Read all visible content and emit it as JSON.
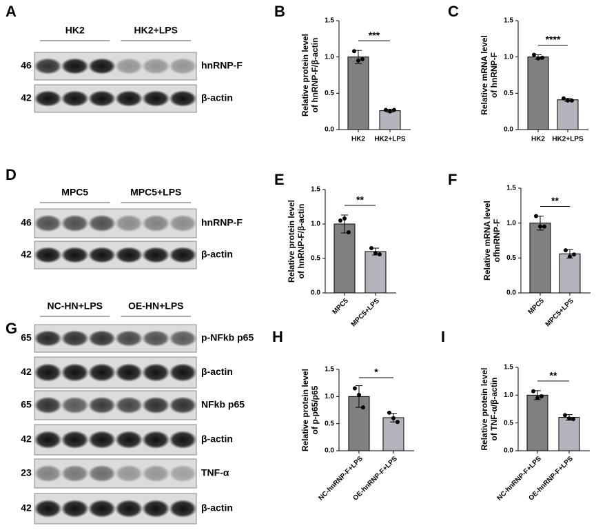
{
  "blots": [
    {
      "letter": "A",
      "groups": [
        "HK2",
        "HK2+LPS"
      ],
      "rows": [
        {
          "mw": "46",
          "label": "hnRNP-F"
        },
        {
          "mw": "42",
          "label": "β-actin"
        }
      ]
    },
    {
      "letter": "D",
      "groups": [
        "MPC5",
        "MPC5+LPS"
      ],
      "rows": [
        {
          "mw": "46",
          "label": "hnRNP-F"
        },
        {
          "mw": "42",
          "label": "β-actin"
        }
      ]
    },
    {
      "letter": "G",
      "groups": [
        "NC-HN+LPS",
        "OE-HN+LPS"
      ],
      "rows": [
        {
          "mw": "65",
          "label": "p-NFkb p65"
        },
        {
          "mw": "42",
          "label": "β-actin"
        },
        {
          "mw": "65",
          "label": "NFkb p65"
        },
        {
          "mw": "42",
          "label": "β-actin"
        },
        {
          "mw": "23",
          "label": "TNF-α"
        },
        {
          "mw": "42",
          "label": "β-actin"
        }
      ]
    }
  ],
  "chart_data": [
    {
      "type": "bar",
      "letter": "B",
      "ylabel": [
        "Relative protein level",
        "of hnRNP-F/β-actin"
      ],
      "categories": [
        "HK2",
        "HK2+LPS"
      ],
      "values": [
        1.0,
        0.26
      ],
      "errors": [
        0.09,
        0.02
      ],
      "points": [
        [
          1.08,
          0.95,
          0.97
        ],
        [
          0.27,
          0.25,
          0.27
        ]
      ],
      "significance": "***",
      "colors": [
        "#808080",
        "#b4b4bc"
      ],
      "ylim": [
        0,
        1.5
      ],
      "yticks": [
        {
          "value": 0,
          "label": "0.0"
        },
        0.5,
        {
          "value": 1,
          "label": "1.0"
        },
        1.5
      ]
    },
    {
      "type": "bar",
      "letter": "C",
      "ylabel": [
        "Relative mRNA level",
        "of hnRNP-F"
      ],
      "categories": [
        "HK2",
        "HK2+LPS"
      ],
      "values": [
        1.0,
        0.41
      ],
      "errors": [
        0.03,
        0.02
      ],
      "points": [
        [
          1.03,
          0.98,
          0.99
        ],
        [
          0.43,
          0.4,
          0.4
        ]
      ],
      "significance": "****",
      "colors": [
        "#808080",
        "#b4b4bc"
      ],
      "ylim": [
        0,
        1.5
      ],
      "yticks": [
        {
          "value": 0,
          "label": "0.0"
        },
        0.5,
        {
          "value": 1,
          "label": "1.0"
        },
        1.5
      ]
    },
    {
      "type": "bar",
      "letter": "E",
      "ylabel": [
        "Relative protein level",
        "of hnRNP-F/β-actin"
      ],
      "categories": [
        "MPC5",
        "MPC5+LPS"
      ],
      "values": [
        1.0,
        0.6
      ],
      "errors": [
        0.13,
        0.05
      ],
      "points": [
        [
          1.05,
          1.08,
          0.88
        ],
        [
          0.65,
          0.58,
          0.56
        ]
      ],
      "significance": "**",
      "colors": [
        "#808080",
        "#b4b4bc"
      ],
      "ylim": [
        0,
        1.5
      ],
      "yticks": [
        {
          "value": 0,
          "label": "0.0"
        },
        0.5,
        {
          "value": 1,
          "label": "1.0"
        },
        1.5
      ]
    },
    {
      "type": "bar",
      "letter": "F",
      "ylabel": [
        "Relative mRNA level",
        "ofhnRNP-F"
      ],
      "categories": [
        "MPC5",
        "MPC5+LPS"
      ],
      "values": [
        1.0,
        0.56
      ],
      "errors": [
        0.1,
        0.06
      ],
      "points": [
        [
          1.1,
          0.95,
          0.95
        ],
        [
          0.61,
          0.52,
          0.55
        ]
      ],
      "significance": "**",
      "colors": [
        "#808080",
        "#b4b4bc"
      ],
      "ylim": [
        0,
        1.5
      ],
      "yticks": [
        {
          "value": 0,
          "label": "0.0"
        },
        0.5,
        {
          "value": 1,
          "label": "1.0"
        },
        1.5
      ]
    },
    {
      "type": "bar",
      "letter": "H",
      "ylabel": [
        "Relative protein level",
        "of p-p65/p65"
      ],
      "categories": [
        "NC-hnRNP-F+LPS",
        "OE-hnRNP-F+LPS"
      ],
      "values": [
        1.0,
        0.61
      ],
      "errors": [
        0.2,
        0.08
      ],
      "points": [
        [
          1.15,
          1.03,
          0.8
        ],
        [
          0.7,
          0.6,
          0.53
        ]
      ],
      "significance": "*",
      "colors": [
        "#808080",
        "#b4b4bc"
      ],
      "ylim": [
        0,
        1.5
      ],
      "yticks": [
        {
          "value": 0,
          "label": "0.0"
        },
        0.5,
        {
          "value": 1,
          "label": "1.0"
        },
        1.5
      ]
    },
    {
      "type": "bar",
      "letter": "I",
      "ylabel": [
        "Relative protein level",
        "of TNF-α/β-actin"
      ],
      "categories": [
        "NC-hnRNP-F+LPS",
        "OE-hnRNP-F+LPS"
      ],
      "values": [
        1.0,
        0.6
      ],
      "errors": [
        0.08,
        0.05
      ],
      "points": [
        [
          1.07,
          0.95,
          0.98
        ],
        [
          0.64,
          0.58,
          0.57
        ]
      ],
      "significance": "**",
      "colors": [
        "#808080",
        "#b4b4bc"
      ],
      "ylim": [
        0,
        1.5
      ],
      "yticks": [
        {
          "value": 0,
          "label": "0.0"
        },
        0.5,
        {
          "value": 1,
          "label": "1.0"
        },
        1.5
      ]
    }
  ]
}
